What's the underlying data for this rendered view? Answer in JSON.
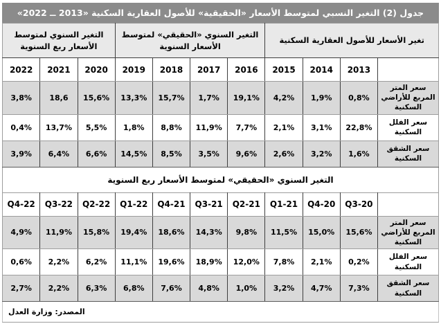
{
  "title": "جدول (2) التغير النسبي لمتوسط الأسعار «الحقيقية» للأصول العقارية السكنية «2013 ــ 2022»",
  "colors": {
    "title_bg": "#8b8b8b",
    "title_text": "#ffffff",
    "group_header_bg": "#e9e9e9",
    "alt_row_bg": "#d9d9d9",
    "grid_vertical": "#3d3d3d",
    "grid_horizontal": "#9c9c9c",
    "group_boundary": "#1b1b1b"
  },
  "annual_table": {
    "group_headers": [
      {
        "label": "تغير الأسعار للأصول العقارية السكنية",
        "span": 4
      },
      {
        "label": "التغير السنوي «الحقيقي» لمتوسط الأسعار السنوية",
        "span": 4
      },
      {
        "label": "التغير السنوي لمتوسط الأسعار ربع السنوية",
        "span": 3
      }
    ],
    "columns": [
      "",
      "2013",
      "2014",
      "2015",
      "2016",
      "2017",
      "2018",
      "2019",
      "2020",
      "2021",
      "2022"
    ],
    "rows": [
      {
        "label": "سعر المتر المربع للأراضي السكنية",
        "values": [
          "0,8%",
          "1,9%",
          "4,2%",
          "19,1%",
          "1,7%",
          "15,7%",
          "13,3%",
          "15,6%",
          "18,6",
          "3,8%"
        ]
      },
      {
        "label": "سعر الفلل السكنية",
        "values": [
          "22,8%",
          "3,1%",
          "2,1%",
          "7,7%",
          "11,9%",
          "8,8%",
          "1,8%",
          "5,5%",
          "13,7%",
          "0,4%"
        ]
      },
      {
        "label": "سعر الشقق السكنية",
        "values": [
          "1,6%",
          "3,2%",
          "2,6%",
          "9,6%",
          "3,5%",
          "8,5%",
          "14,5%",
          "6,6%",
          "6,4%",
          "3,9%"
        ]
      }
    ]
  },
  "quarterly_table": {
    "band_header": "التغير السنوي «الحقيقي» لمتوسط الأسعار ربع السنوية",
    "columns": [
      "",
      "Q3-20",
      "Q4-20",
      "Q1-21",
      "Q2-21",
      "Q3-21",
      "Q4-21",
      "Q1-22",
      "Q2-22",
      "Q3-22",
      "Q4-22"
    ],
    "rows": [
      {
        "label": "سعر المتر المربع للأراضي السكنية",
        "values": [
          "15,6%",
          "15,0%",
          "11,5%",
          "9,8%",
          "14,3%",
          "18,6%",
          "19,4%",
          "15,8%",
          "11,9%",
          "4,9%"
        ]
      },
      {
        "label": "سعر الفلل السكنية",
        "values": [
          "0,2%",
          "2,1%",
          "7,8%",
          "12,0%",
          "18,9%",
          "19,6%",
          "11,1%",
          "6,2%",
          "2,2%",
          "0,6%"
        ]
      },
      {
        "label": "سعر الشقق السكنية",
        "values": [
          "7,3%",
          "4,7%",
          "3,2%",
          "1,0%",
          "4,8%",
          "7,6%",
          "6,8%",
          "6,3%",
          "2,2%",
          "2,7%"
        ]
      }
    ]
  },
  "footer": {
    "source": "المصدر: وزارة العدل"
  }
}
